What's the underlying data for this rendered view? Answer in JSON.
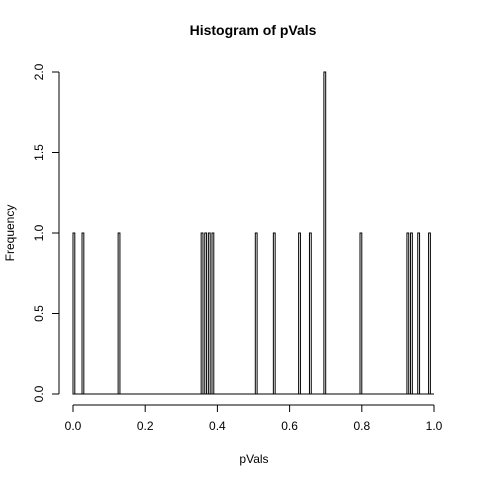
{
  "chart_data": {
    "type": "bar",
    "subtype": "histogram",
    "title": "Histogram of pVals",
    "xlabel": "pVals",
    "ylabel": "Frequency",
    "xlim": [
      0,
      1
    ],
    "ylim": [
      0,
      2
    ],
    "bin_width": 0.005,
    "x_ticks": [
      0,
      0.2,
      0.4,
      0.6,
      0.8,
      1
    ],
    "x_tick_labels": [
      "0.0",
      "0.2",
      "0.4",
      "0.6",
      "0.8",
      "1.0"
    ],
    "y_ticks": [
      0,
      0.5,
      1,
      1.5,
      2
    ],
    "y_tick_labels": [
      "0.0",
      "0.5",
      "1.0",
      "1.5",
      "2.0"
    ],
    "grid": false,
    "legend": "none",
    "bars": [
      {
        "x_start": 0.0,
        "x_end": 0.005,
        "count": 1
      },
      {
        "x_start": 0.025,
        "x_end": 0.03,
        "count": 1
      },
      {
        "x_start": 0.125,
        "x_end": 0.13,
        "count": 1
      },
      {
        "x_start": 0.355,
        "x_end": 0.36,
        "count": 1
      },
      {
        "x_start": 0.365,
        "x_end": 0.37,
        "count": 1
      },
      {
        "x_start": 0.375,
        "x_end": 0.38,
        "count": 1
      },
      {
        "x_start": 0.385,
        "x_end": 0.39,
        "count": 1
      },
      {
        "x_start": 0.505,
        "x_end": 0.51,
        "count": 1
      },
      {
        "x_start": 0.555,
        "x_end": 0.56,
        "count": 1
      },
      {
        "x_start": 0.625,
        "x_end": 0.63,
        "count": 1
      },
      {
        "x_start": 0.655,
        "x_end": 0.66,
        "count": 1
      },
      {
        "x_start": 0.695,
        "x_end": 0.7,
        "count": 2
      },
      {
        "x_start": 0.795,
        "x_end": 0.8,
        "count": 1
      },
      {
        "x_start": 0.925,
        "x_end": 0.93,
        "count": 1
      },
      {
        "x_start": 0.935,
        "x_end": 0.94,
        "count": 1
      },
      {
        "x_start": 0.955,
        "x_end": 0.96,
        "count": 1
      },
      {
        "x_start": 0.985,
        "x_end": 0.99,
        "count": 1
      }
    ]
  }
}
